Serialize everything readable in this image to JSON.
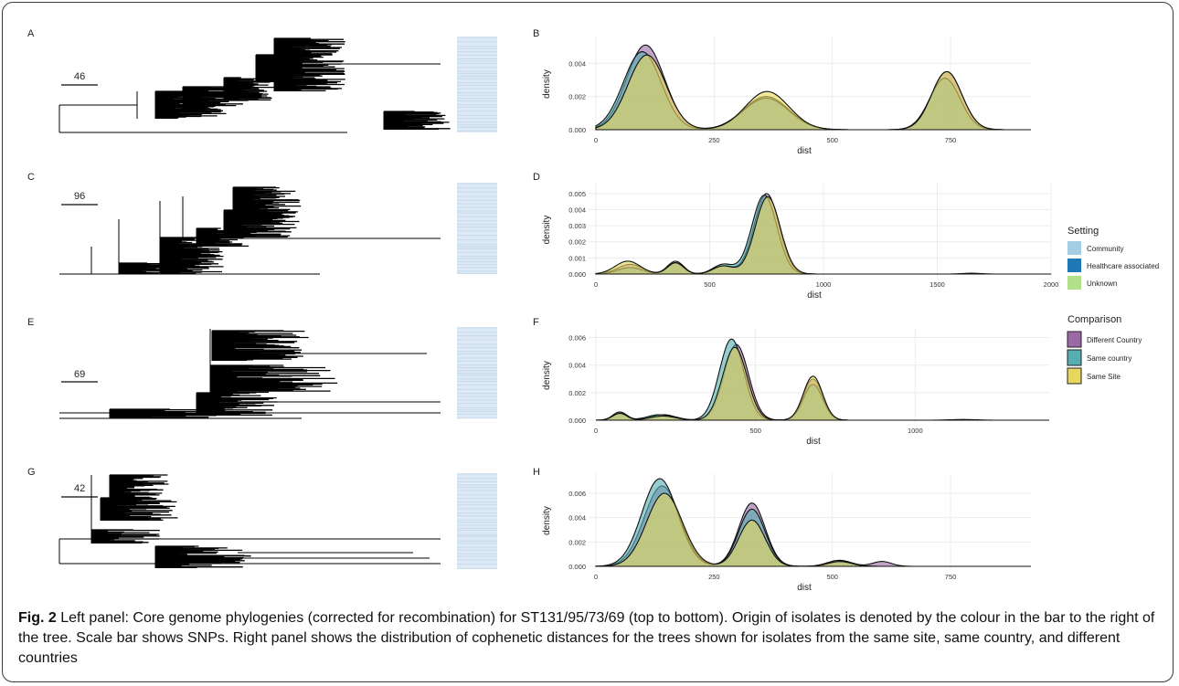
{
  "caption": {
    "label": "Fig. 2",
    "text": " Left panel: Core genome phylogenies (corrected for recombination) for ST131/95/73/69 (top to bottom). Origin of isolates is denoted by the colour in the bar to the right of the tree. Scale bar shows SNPs. Right panel shows the distribution of cophenetic distances for the trees shown for isolates from the same site, same country, and different countries"
  },
  "colors": {
    "diff_country": "#9b6aa6",
    "same_country": "#56aeb1",
    "same_site": "#e7d85c",
    "community": "#a6cee3",
    "healthcare": "#1f78b4",
    "unknown": "#b2df8a",
    "bar_fill": "#dde9f4",
    "bar_line": "#c6dbeb"
  },
  "trees": [
    {
      "panel": "A",
      "scale_label": "46"
    },
    {
      "panel": "C",
      "scale_label": "96"
    },
    {
      "panel": "E",
      "scale_label": "69"
    },
    {
      "panel": "G",
      "scale_label": "42"
    }
  ],
  "legend": {
    "setting_title": "Setting",
    "setting_items": [
      {
        "label": "Community",
        "color_key": "community"
      },
      {
        "label": "Healthcare associated",
        "color_key": "healthcare"
      },
      {
        "label": "Unknown",
        "color_key": "unknown"
      }
    ],
    "comparison_title": "Comparison",
    "comparison_items": [
      {
        "label": "Different Country",
        "color_key": "diff_country"
      },
      {
        "label": "Same country",
        "color_key": "same_country"
      },
      {
        "label": "Same Site",
        "color_key": "same_site"
      }
    ]
  },
  "chart_data": [
    {
      "panel": "B",
      "type": "area",
      "xlabel": "dist",
      "ylabel": "density",
      "xlim": [
        0,
        920
      ],
      "ylim": [
        0,
        0.0055
      ],
      "xticks": [
        0,
        250,
        500,
        750
      ],
      "yticks": [
        0,
        0.002,
        0.004
      ],
      "ytick_labels": [
        "0.000",
        "0.002",
        "0.004"
      ],
      "series": [
        {
          "name": "Different Country",
          "peaks": [
            [
              105,
              0.0051,
              40
            ],
            [
              360,
              0.002,
              48
            ],
            [
              742,
              0.0035,
              32
            ]
          ]
        },
        {
          "name": "Same country",
          "peaks": [
            [
              98,
              0.0047,
              40
            ],
            [
              360,
              0.0019,
              48
            ],
            [
              738,
              0.0031,
              32
            ]
          ]
        },
        {
          "name": "Same Site",
          "peaks": [
            [
              108,
              0.0045,
              40
            ],
            [
              362,
              0.0023,
              46
            ],
            [
              742,
              0.0035,
              32
            ]
          ]
        }
      ]
    },
    {
      "panel": "D",
      "type": "area",
      "xlabel": "dist",
      "ylabel": "density",
      "xlim": [
        0,
        2000
      ],
      "ylim": [
        0,
        0.0055
      ],
      "xticks": [
        0,
        500,
        1000,
        1500,
        2000
      ],
      "yticks": [
        0,
        0.001,
        0.002,
        0.003,
        0.004,
        0.005
      ],
      "ytick_labels": [
        "0.000",
        "0.001",
        "0.002",
        "0.003",
        "0.004",
        "0.005"
      ],
      "series": [
        {
          "name": "Different Country",
          "peaks": [
            [
              150,
              0.0006,
              55
            ],
            [
              350,
              0.0008,
              35
            ],
            [
              560,
              0.0005,
              45
            ],
            [
              750,
              0.005,
              55
            ],
            [
              1650,
              5e-05,
              40
            ]
          ]
        },
        {
          "name": "Same country",
          "peaks": [
            [
              150,
              0.0004,
              55
            ],
            [
              350,
              0.0007,
              35
            ],
            [
              560,
              0.0006,
              45
            ],
            [
              740,
              0.0049,
              55
            ]
          ]
        },
        {
          "name": "Same Site",
          "peaks": [
            [
              140,
              0.0008,
              55
            ],
            [
              350,
              0.0007,
              35
            ],
            [
              560,
              0.0005,
              45
            ],
            [
              755,
              0.0048,
              55
            ]
          ]
        }
      ]
    },
    {
      "panel": "F",
      "type": "area",
      "xlabel": "dist",
      "ylabel": "density",
      "xlim": [
        0,
        1420
      ],
      "ylim": [
        0,
        0.0065
      ],
      "xticks": [
        0,
        500,
        1000
      ],
      "yticks": [
        0,
        0.002,
        0.004,
        0.006
      ],
      "ytick_labels": [
        "0.000",
        "0.002",
        "0.004",
        "0.006"
      ],
      "series": [
        {
          "name": "Different Country",
          "peaks": [
            [
              75,
              0.0006,
              22
            ],
            [
              210,
              0.0004,
              40
            ],
            [
              440,
              0.0055,
              38
            ],
            [
              680,
              0.003,
              30
            ],
            [
              1150,
              5e-05,
              40
            ]
          ]
        },
        {
          "name": "Same country",
          "peaks": [
            [
              75,
              0.0005,
              22
            ],
            [
              200,
              0.0004,
              40
            ],
            [
              425,
              0.0059,
              38
            ],
            [
              680,
              0.0026,
              30
            ]
          ]
        },
        {
          "name": "Same Site",
          "peaks": [
            [
              75,
              0.0005,
              22
            ],
            [
              210,
              0.0003,
              40
            ],
            [
              435,
              0.0053,
              38
            ],
            [
              680,
              0.0032,
              30
            ]
          ]
        }
      ]
    },
    {
      "panel": "H",
      "type": "area",
      "xlabel": "dist",
      "ylabel": "density",
      "xlim": [
        0,
        920
      ],
      "ylim": [
        0,
        0.0075
      ],
      "xticks": [
        0,
        250,
        500,
        750
      ],
      "yticks": [
        0,
        0.002,
        0.004,
        0.006
      ],
      "ytick_labels": [
        "0.000",
        "0.002",
        "0.004",
        "0.006"
      ],
      "series": [
        {
          "name": "Different Country",
          "peaks": [
            [
              140,
              0.0066,
              38
            ],
            [
              330,
              0.0052,
              28
            ],
            [
              515,
              0.0005,
              25
            ],
            [
              605,
              0.0004,
              20
            ]
          ]
        },
        {
          "name": "Same country",
          "peaks": [
            [
              135,
              0.0072,
              38
            ],
            [
              330,
              0.0047,
              28
            ],
            [
              520,
              0.0004,
              25
            ]
          ]
        },
        {
          "name": "Same Site",
          "peaks": [
            [
              145,
              0.006,
              38
            ],
            [
              330,
              0.0038,
              28
            ],
            [
              515,
              0.0004,
              25
            ]
          ]
        }
      ]
    }
  ]
}
